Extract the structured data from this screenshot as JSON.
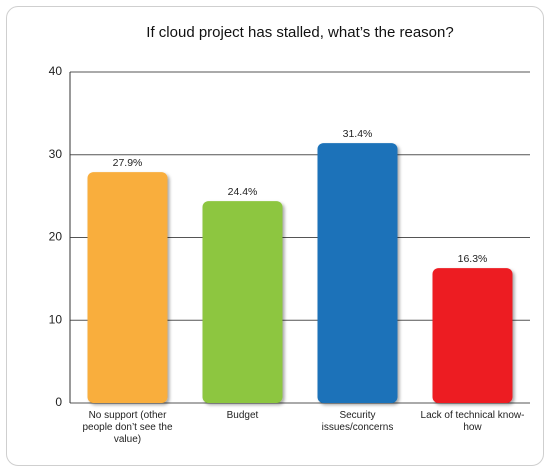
{
  "chart_data": {
    "type": "bar",
    "title": "If cloud project has stalled, what’s the reason?",
    "categories": [
      "No support (other people don’t see the value)",
      "Budget",
      "Security issues/concerns",
      "Lack of technical know-how"
    ],
    "values": [
      27.9,
      24.4,
      31.4,
      16.3
    ],
    "value_labels": [
      "27.9%",
      "24.4%",
      "31.4%",
      "16.3%"
    ],
    "colors": [
      "#f9ae3c",
      "#8dc63f",
      "#1a72b9",
      "#ed1c24"
    ],
    "ylim": [
      0,
      40
    ],
    "yticks": [
      0,
      10,
      20,
      30,
      40
    ],
    "grid": true
  }
}
